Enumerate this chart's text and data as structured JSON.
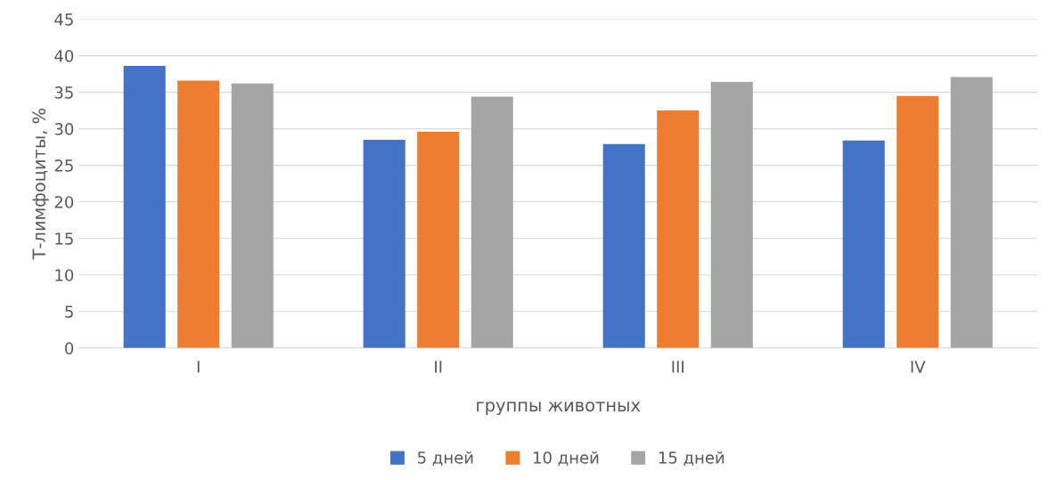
{
  "chart_data": {
    "type": "bar",
    "xlabel": "группы животных",
    "ylabel": "Т-лимфоциты, %",
    "categories": [
      "I",
      "II",
      "III",
      "IV"
    ],
    "series": [
      {
        "name": "5 дней",
        "color": "#4472c4",
        "values": [
          38.6,
          28.5,
          27.9,
          28.4
        ]
      },
      {
        "name": "10 дней",
        "color": "#ed7d31",
        "values": [
          36.6,
          29.6,
          32.5,
          34.5
        ]
      },
      {
        "name": "15 дней",
        "color": "#a5a5a5",
        "values": [
          36.2,
          34.4,
          36.4,
          37.1
        ]
      }
    ],
    "ylim": [
      0,
      45
    ],
    "yticks": [
      0,
      5,
      10,
      15,
      20,
      25,
      30,
      35,
      40,
      45
    ],
    "grid": "y",
    "legend": "bottom"
  }
}
